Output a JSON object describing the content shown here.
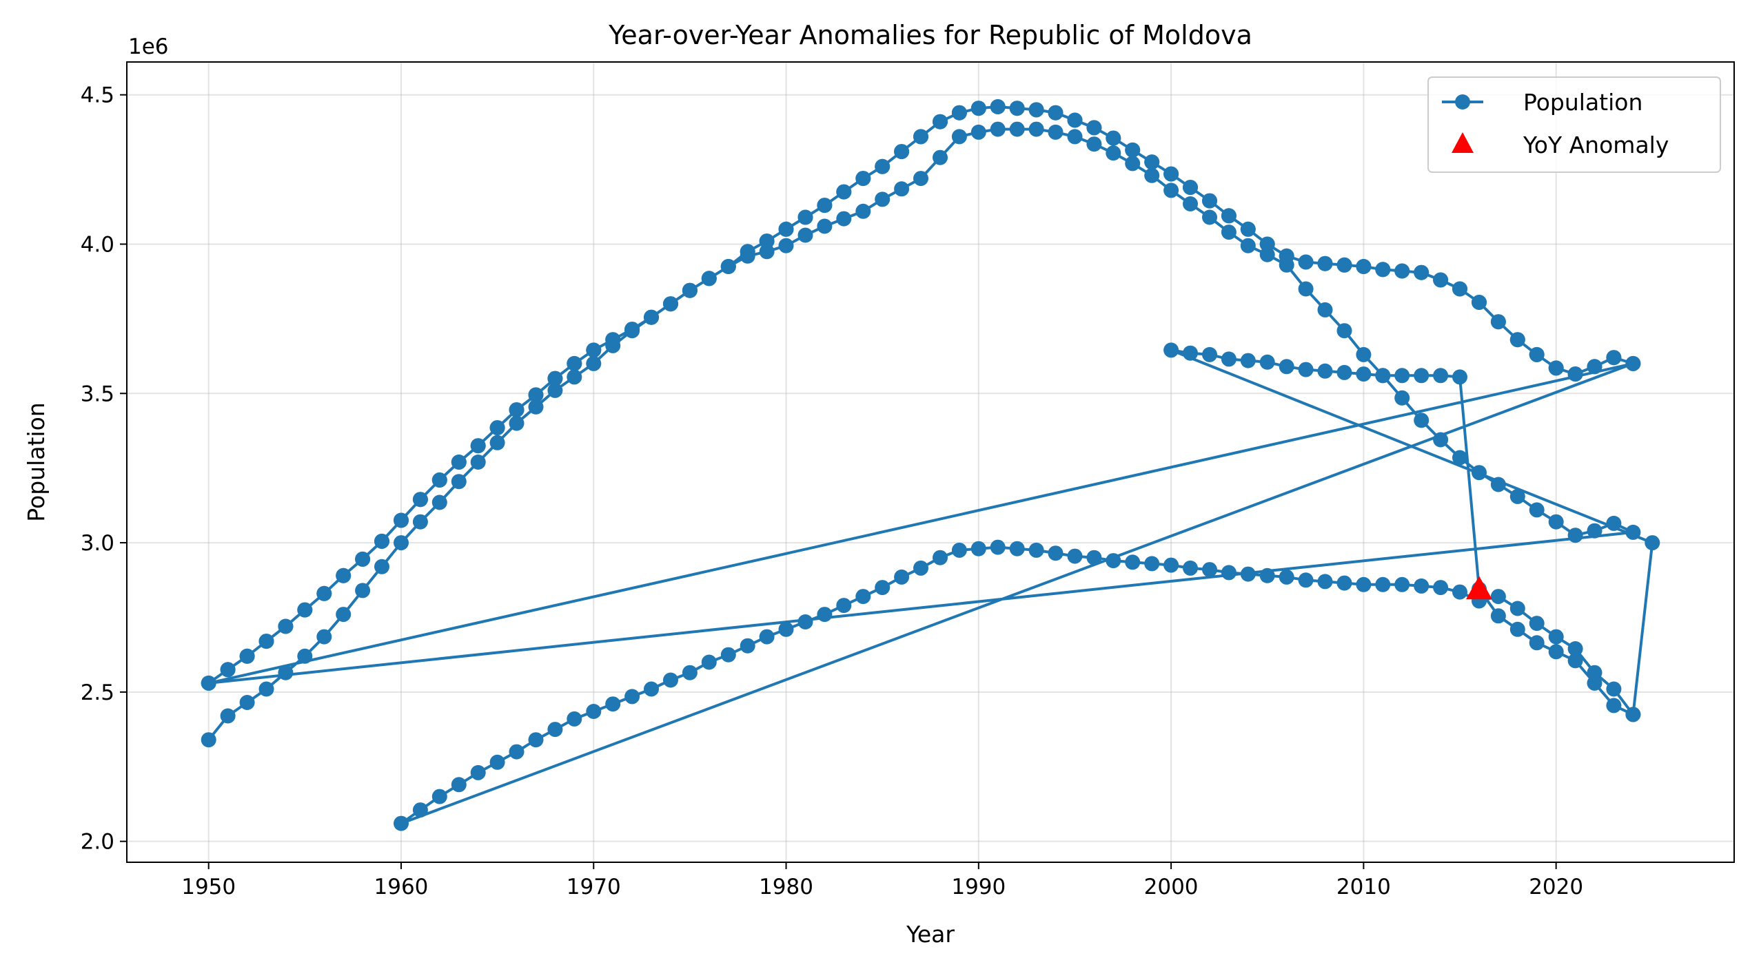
{
  "chart_data": {
    "type": "line",
    "title": "Year-over-Year Anomalies for Republic of Moldova",
    "xlabel": "Year",
    "ylabel": "Population",
    "y_offset_label": "1e6",
    "xlim": [
      1945.75,
      2029.25
    ],
    "ylim": [
      1.93,
      4.61
    ],
    "x_ticks": [
      1950,
      1960,
      1970,
      1980,
      1990,
      2000,
      2010,
      2020
    ],
    "y_ticks": [
      2.0,
      2.5,
      3.0,
      3.5,
      4.0,
      4.5
    ],
    "y_tick_labels": [
      "2.0",
      "2.5",
      "3.0",
      "3.5",
      "4.0",
      "4.5"
    ],
    "grid": true,
    "legend_position": "top-right",
    "colors": {
      "series": "#1f77b4",
      "anomaly": "#ff0000"
    },
    "series": [
      {
        "name": "Population",
        "unit_multiplier": 1000000,
        "x": [
          1950,
          1951,
          1952,
          1953,
          1954,
          1955,
          1956,
          1957,
          1958,
          1959,
          1960,
          1961,
          1962,
          1963,
          1964,
          1965,
          1966,
          1967,
          1968,
          1969,
          1970,
          1971,
          1972,
          1973,
          1974,
          1975,
          1976,
          1977,
          1978,
          1979,
          1980,
          1981,
          1982,
          1983,
          1984,
          1985,
          1986,
          1987,
          1988,
          1989,
          1990,
          1991,
          1992,
          1993,
          1994,
          1995,
          1996,
          1997,
          1998,
          1999,
          2000,
          2001,
          2002,
          2003,
          2004,
          2005,
          2006,
          2007,
          2008,
          2009,
          2010,
          2011,
          2012,
          2013,
          2014,
          2015,
          2016,
          2017,
          2018,
          2019,
          2020,
          2021,
          2022,
          2023,
          2024,
          1950,
          1951,
          1952,
          1953,
          1954,
          1955,
          1956,
          1957,
          1958,
          1959,
          1960,
          1961,
          1962,
          1963,
          1964,
          1965,
          1966,
          1967,
          1968,
          1969,
          1970,
          1971,
          1972,
          1973,
          1974,
          1975,
          1976,
          1977,
          1978,
          1979,
          1980,
          1981,
          1982,
          1983,
          1984,
          1985,
          1986,
          1987,
          1988,
          1989,
          1990,
          1991,
          1992,
          1993,
          1994,
          1995,
          1996,
          1997,
          1998,
          1999,
          2000,
          2001,
          2002,
          2003,
          2004,
          2005,
          2006,
          2007,
          2008,
          2009,
          2010,
          2011,
          2012,
          2013,
          2014,
          2015,
          2016,
          2017,
          2018,
          2019,
          2020,
          2021,
          2022,
          2023,
          2024,
          1950,
          1951,
          1952,
          1953,
          1954,
          1955,
          1956,
          1957,
          1958,
          1959,
          1960,
          1961,
          1962,
          1963,
          1964,
          1965,
          1966,
          1967,
          1968,
          1969,
          1970,
          1971,
          1972,
          1973,
          1974,
          1975,
          1976,
          1977,
          1978,
          1979,
          1980,
          1981,
          1982,
          1983,
          1984,
          1985,
          1986,
          1987,
          1988,
          1989,
          1990,
          1991,
          1992,
          1993,
          1994,
          1995,
          1996,
          1997,
          1998,
          1999,
          2000,
          2001,
          2002,
          2003,
          2004,
          2005,
          2006,
          2007,
          2008,
          2009,
          2010,
          2011,
          2012,
          2013,
          2014,
          2015,
          2016,
          2017,
          2018,
          2019,
          2020,
          2021,
          2022,
          2023,
          2024,
          1960,
          1961,
          1962,
          1963,
          1964,
          1965,
          1966,
          1967,
          1968,
          1969,
          1970,
          1971,
          1972,
          1973,
          1974,
          1975,
          1976,
          1977,
          1978,
          1979,
          1980,
          1981,
          1982,
          1983,
          1984,
          1985,
          1986,
          1987,
          1988,
          1989,
          1990,
          1991,
          1992,
          1993,
          1994,
          1995,
          1996,
          1997,
          1998,
          1999,
          2000,
          2001,
          2002,
          2003,
          2004,
          2005,
          2006,
          2007,
          2008,
          2009,
          2010,
          2011,
          2012,
          2013,
          2014,
          2015,
          2016,
          2017,
          2018,
          2019,
          2020,
          2021,
          2022,
          2023,
          2024,
          2025,
          2000,
          2001,
          2002,
          2003,
          2004,
          2005,
          2006,
          2007,
          2008,
          2009,
          2010,
          2011,
          2012,
          2013,
          2014,
          2015,
          2016,
          2017,
          2018,
          2019,
          2020,
          2021,
          2022,
          2023,
          2024
        ],
        "values": [
          2.34,
          2.42,
          2.465,
          2.51,
          2.565,
          2.62,
          2.685,
          2.76,
          2.84,
          2.92,
          3.0,
          3.07,
          3.135,
          3.205,
          3.27,
          3.335,
          3.4,
          3.455,
          3.51,
          3.555,
          3.6,
          3.66,
          3.71,
          3.755,
          3.8,
          3.845,
          3.885,
          3.925,
          3.96,
          3.975,
          3.995,
          4.03,
          4.06,
          4.085,
          4.11,
          4.15,
          4.185,
          4.22,
          4.29,
          4.36,
          4.375,
          4.385,
          4.385,
          4.385,
          4.375,
          4.36,
          4.335,
          4.305,
          4.27,
          4.23,
          4.18,
          4.135,
          4.09,
          4.04,
          3.995,
          3.965,
          3.93,
          3.85,
          3.78,
          3.71,
          3.63,
          3.56,
          3.485,
          3.41,
          3.345,
          3.285,
          3.235,
          3.195,
          3.155,
          3.11,
          3.07,
          3.025,
          3.04,
          3.065,
          3.035,
          2.53,
          2.575,
          2.62,
          2.67,
          2.72,
          2.775,
          2.83,
          2.89,
          2.945,
          3.005,
          3.075,
          3.145,
          3.21,
          3.27,
          3.325,
          3.385,
          3.445,
          3.495,
          3.55,
          3.6,
          3.645,
          3.68,
          3.715,
          3.755,
          3.8,
          3.845,
          3.885,
          3.925,
          3.975,
          4.01,
          4.05,
          4.09,
          4.13,
          4.175,
          4.22,
          4.26,
          4.31,
          4.36,
          4.41,
          4.44,
          4.455,
          4.46,
          4.455,
          4.45,
          4.44,
          4.415,
          4.39,
          4.355,
          4.315,
          4.275,
          4.235,
          4.19,
          4.145,
          4.095,
          4.05,
          4.0,
          3.96,
          3.94,
          3.935,
          3.93,
          3.925,
          3.915,
          3.91,
          3.905,
          3.88,
          3.85,
          3.805,
          3.74,
          3.68,
          3.63,
          3.585,
          3.565,
          3.59,
          3.62,
          3.6,
          2.53,
          2.575,
          2.62,
          2.67,
          2.72,
          2.775,
          2.83,
          2.89,
          2.945,
          3.005,
          3.075,
          3.145,
          3.21,
          3.27,
          3.325,
          3.385,
          3.445,
          3.495,
          3.55,
          3.6,
          3.645,
          3.68,
          3.715,
          3.755,
          3.8,
          3.845,
          3.885,
          3.925,
          3.975,
          4.01,
          4.05,
          4.09,
          4.13,
          4.175,
          4.22,
          4.26,
          4.31,
          4.36,
          4.41,
          4.44,
          4.455,
          4.46,
          4.455,
          4.45,
          4.44,
          4.415,
          4.39,
          4.355,
          4.315,
          4.275,
          4.235,
          4.19,
          4.145,
          4.095,
          4.05,
          4.0,
          3.96,
          3.94,
          3.935,
          3.93,
          3.925,
          3.915,
          3.91,
          3.905,
          3.88,
          3.85,
          3.805,
          3.74,
          3.68,
          3.63,
          3.585,
          3.565,
          3.59,
          3.62,
          3.6,
          2.06,
          2.105,
          2.15,
          2.19,
          2.23,
          2.265,
          2.3,
          2.34,
          2.375,
          2.41,
          2.435,
          2.46,
          2.485,
          2.51,
          2.54,
          2.565,
          2.6,
          2.625,
          2.655,
          2.685,
          2.71,
          2.735,
          2.76,
          2.79,
          2.82,
          2.85,
          2.885,
          2.915,
          2.95,
          2.975,
          2.98,
          2.985,
          2.98,
          2.975,
          2.965,
          2.955,
          2.95,
          2.94,
          2.935,
          2.93,
          2.925,
          2.915,
          2.91,
          2.9,
          2.895,
          2.89,
          2.885,
          2.875,
          2.87,
          2.865,
          2.86,
          2.86,
          2.86,
          2.855,
          2.85,
          2.835,
          2.805,
          2.82,
          2.78,
          2.73,
          2.685,
          2.645,
          2.565,
          2.51,
          2.425,
          3.0,
          3.645,
          3.635,
          3.63,
          3.615,
          3.61,
          3.605,
          3.59,
          3.58,
          3.575,
          3.57,
          3.565,
          3.56,
          3.56,
          3.56,
          3.56,
          3.555,
          2.845,
          2.755,
          2.71,
          2.665,
          2.635,
          2.605,
          2.53,
          2.455,
          2.425
        ]
      }
    ],
    "anomalies": {
      "name": "YoY Anomaly",
      "points": [
        {
          "x": 2016,
          "y": 2.845
        }
      ]
    }
  }
}
